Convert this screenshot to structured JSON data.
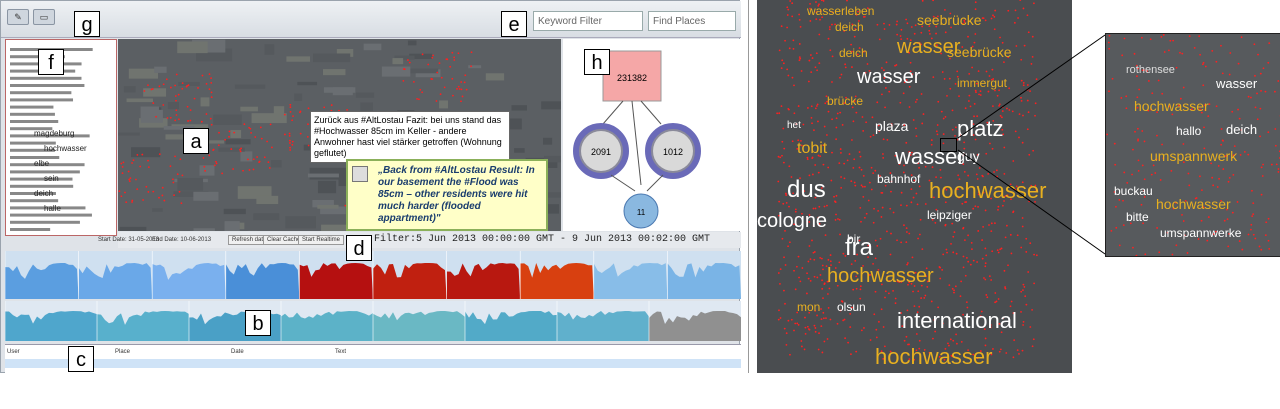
{
  "toolbar": {
    "keyword_filter": "Keyword Filter",
    "find_places": "Find Places",
    "btn1": "✎",
    "btn2": "▭"
  },
  "labels": {
    "a": "a",
    "b": "b",
    "c": "c",
    "d": "d",
    "e": "e",
    "f": "f",
    "g": "g",
    "h": "h"
  },
  "tooltip": "Zurück aus #AltLostau Fazit: bei uns stand das #Hochwasser 85cm im Keller - andere Anwohner hast viel stärker getroffen (Wohnung geflutet)",
  "translation": "„Back from #AltLostau Result: In our basement the #Flood was 85cm – other residents were hit much harder (flooded appartment)\"",
  "graph": {
    "top_value": "231382",
    "left_value": "2091",
    "right_value": "1012",
    "bottom_value": "11"
  },
  "filter_text": "Filter:5 Jun 2013 00:00:00 GMT - 9 Jun 2013 00:02:00 GMT",
  "ctrl": {
    "start": "Start Date: 31-05-2013",
    "end": "End Date: 10-06-2013",
    "b1": "Refresh data",
    "b2": "Clear Cache",
    "b3": "Start Realtime"
  },
  "table": {
    "h_user": "User",
    "h_place": "Place",
    "h_date": "Date",
    "h_text": "Text"
  },
  "cloud_words": [
    "magdeburg",
    "hochwasser",
    "elbe",
    "sein",
    "deich",
    "halle"
  ],
  "right_words": [
    {
      "t": "wasserleben",
      "c": "#e8b020"
    },
    {
      "t": "seebrücke",
      "c": "#e8b020"
    },
    {
      "t": "deich",
      "c": "#e8b020"
    },
    {
      "t": "wasser",
      "c": "#e8b020"
    },
    {
      "t": "seebrücke",
      "c": "#e8b020"
    },
    {
      "t": "deich",
      "c": "#e8b020"
    },
    {
      "t": "wasser",
      "c": "#ffffff"
    },
    {
      "t": "immergut",
      "c": "#e8b020"
    },
    {
      "t": "brücke",
      "c": "#e8b020"
    },
    {
      "t": "plaza",
      "c": "#ffffff"
    },
    {
      "t": "platz",
      "c": "#ffffff"
    },
    {
      "t": "het",
      "c": "#ffffff"
    },
    {
      "t": "tobit",
      "c": "#e8b020"
    },
    {
      "t": "wasser",
      "c": "#ffffff"
    },
    {
      "t": "guy",
      "c": "#ffffff"
    },
    {
      "t": "dus",
      "c": "#ffffff"
    },
    {
      "t": "hochwasser",
      "c": "#e8b020"
    },
    {
      "t": "bahnhof",
      "c": "#ffffff"
    },
    {
      "t": "cologne",
      "c": "#ffffff"
    },
    {
      "t": "leipziger",
      "c": "#ffffff"
    },
    {
      "t": "fra",
      "c": "#ffffff"
    },
    {
      "t": "bir",
      "c": "#ffffff"
    },
    {
      "t": "hochwasser",
      "c": "#e8b020"
    },
    {
      "t": "international",
      "c": "#ffffff"
    },
    {
      "t": "hochwasser",
      "c": "#e8b020"
    },
    {
      "t": "olsun",
      "c": "#ffffff"
    },
    {
      "t": "mon",
      "c": "#e8b020"
    }
  ],
  "zoom_words": [
    {
      "t": "rothensee",
      "c": "#dddddd"
    },
    {
      "t": "wasser",
      "c": "#ffffff"
    },
    {
      "t": "hochwasser",
      "c": "#e8b020"
    },
    {
      "t": "hallo",
      "c": "#ffffff"
    },
    {
      "t": "deich",
      "c": "#ffffff"
    },
    {
      "t": "umspannwerk",
      "c": "#e8b020"
    },
    {
      "t": "buckau",
      "c": "#ffffff"
    },
    {
      "t": "hochwasser",
      "c": "#e8b020"
    },
    {
      "t": "bitte",
      "c": "#ffffff"
    },
    {
      "t": "umspannwerke",
      "c": "#ffffff"
    }
  ],
  "colors": {
    "accent": "#e8b020",
    "dot": "#ff2020"
  }
}
